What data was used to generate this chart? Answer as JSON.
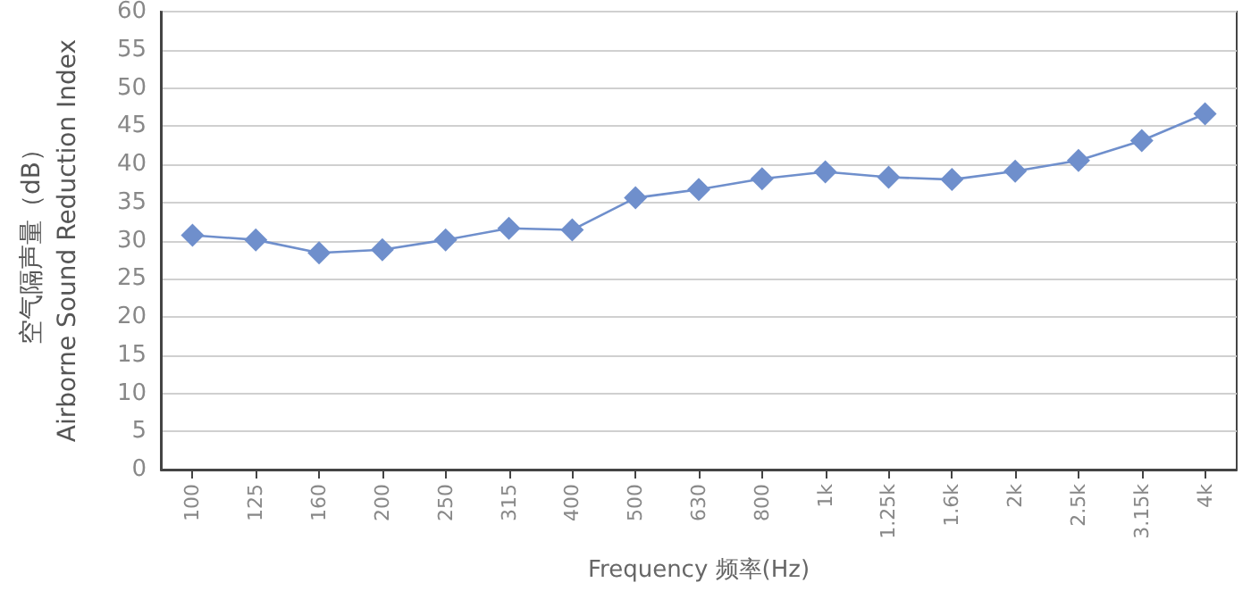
{
  "chart_data": {
    "type": "line",
    "xlabel": "Frequency 频率(Hz)",
    "ylabel": "空气隔声量（dB）\nAirborne Sound Reduction Index",
    "categories": [
      "100",
      "125",
      "160",
      "200",
      "250",
      "315",
      "400",
      "500",
      "630",
      "800",
      "1k",
      "1.25k",
      "1.6k",
      "2k",
      "2.5k",
      "3.15k",
      "4k"
    ],
    "series": [
      {
        "color": "#6f8fcc",
        "values": [
          30.7,
          30.1,
          28.4,
          28.8,
          30.1,
          31.6,
          31.4,
          35.6,
          36.7,
          38.1,
          39.0,
          38.3,
          38.0,
          39.1,
          40.5,
          43.1,
          46.6
        ]
      }
    ],
    "ylim": [
      0,
      60
    ],
    "yticks": [
      0,
      5,
      10,
      15,
      20,
      25,
      30,
      35,
      40,
      45,
      50,
      55,
      60
    ],
    "grid": "y",
    "marker": "diamond",
    "line_style": "solid"
  }
}
